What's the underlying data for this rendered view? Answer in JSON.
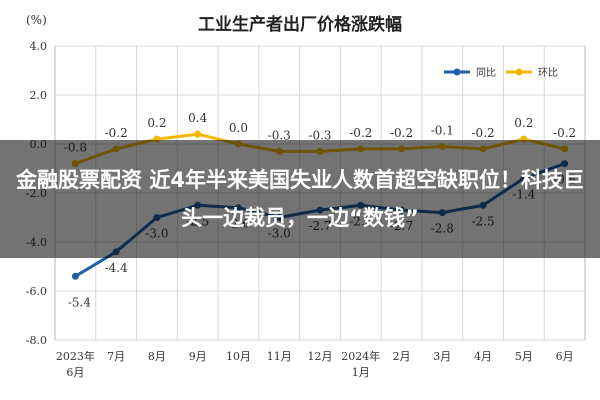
{
  "overlay": {
    "headline": "金融股票配资 近4年半来美国失业人数首超空缺职位！科技巨头一边裁员，一边“数钱”"
  },
  "chart_data": {
    "type": "line",
    "title": "工业生产者出厂价格涨跌幅",
    "unit": "(%)",
    "categories": [
      "2023年\n6月",
      "7月",
      "8月",
      "9月",
      "10月",
      "11月",
      "12月",
      "2024年\n1月",
      "2月",
      "3月",
      "4月",
      "5月",
      "6月"
    ],
    "ylim": [
      -8.0,
      4.0
    ],
    "yticks": [
      "4.0",
      "2.0",
      "0.0",
      "-2.0",
      "-4.0",
      "-6.0",
      "-8.0"
    ],
    "ytick_values": [
      4,
      2,
      0,
      -2,
      -4,
      -6,
      -8
    ],
    "grid": true,
    "legend_position": "top-right",
    "series": [
      {
        "name": "同比",
        "color": "#1f5fa8",
        "values": [
          -5.4,
          -4.4,
          -3.0,
          -2.5,
          -2.6,
          -3.0,
          -2.7,
          -2.5,
          -2.7,
          -2.8,
          -2.5,
          -1.4,
          -0.8
        ],
        "labels": [
          "-5.4",
          "-4.4",
          "-3.0",
          "-2.5",
          "-2.6",
          "-3.0",
          "-2.7",
          "-2.5",
          "-2.7",
          "-2.8",
          "-2.5",
          "-1.4",
          "-0.8"
        ]
      },
      {
        "name": "环比",
        "color": "#f5b800",
        "values": [
          -0.8,
          -0.2,
          0.2,
          0.4,
          0.0,
          -0.3,
          -0.3,
          -0.2,
          -0.2,
          -0.1,
          -0.2,
          0.2,
          -0.2
        ],
        "labels": [
          "-0.8",
          "-0.2",
          "0.2",
          "0.4",
          "0.0",
          "-0.3",
          "-0.3",
          "-0.2",
          "-0.2",
          "-0.1",
          "-0.2",
          "0.2",
          "-0.2"
        ]
      }
    ]
  }
}
